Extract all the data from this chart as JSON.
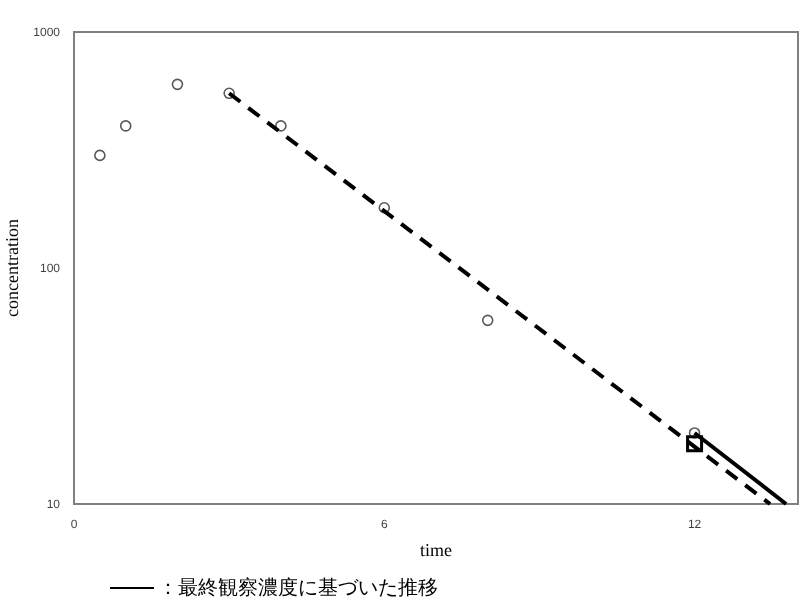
{
  "chart_data": {
    "type": "scatter",
    "xlabel": "time",
    "ylabel": "concentration",
    "log": "y",
    "xlim": [
      0,
      14
    ],
    "ylim": [
      10,
      1000
    ],
    "xticks": [
      0,
      6,
      12
    ],
    "yticks": [
      10,
      100,
      1000
    ],
    "grid": false,
    "legend": "bottom",
    "series": [
      {
        "marker": "circle",
        "color": "#595959",
        "x": [
          0.5,
          1,
          2,
          3,
          4,
          6,
          8,
          12
        ],
        "values": [
          300,
          400,
          600,
          550,
          400,
          180,
          60,
          20
        ]
      },
      {
        "type": "line",
        "line_style": "dashed",
        "marker": "none",
        "color": "#000000",
        "x": [
          3,
          13.46
        ],
        "values": [
          550,
          10
        ]
      },
      {
        "type": "line",
        "line_style": "solid",
        "marker": "none",
        "color": "#000000",
        "name": "：最終観察濃度に基づいた推移",
        "x": [
          12,
          13.77
        ],
        "values": [
          20,
          10
        ]
      },
      {
        "type": "scatter",
        "marker": "square",
        "color": "#000000",
        "x": [
          12
        ],
        "values": [
          18
        ]
      }
    ]
  }
}
